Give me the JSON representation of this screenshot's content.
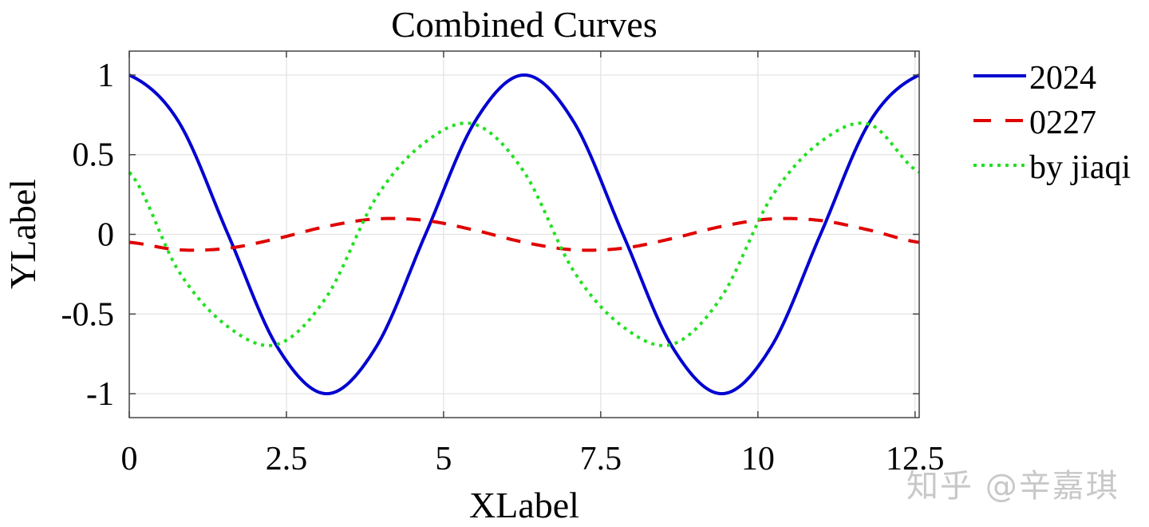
{
  "chart_data": {
    "type": "line",
    "title": "Combined Curves",
    "xlabel": "XLabel",
    "ylabel": "YLabel",
    "xlim": [
      0,
      12.566
    ],
    "ylim": [
      -1.15,
      1.15
    ],
    "grid": true,
    "legend_position": "outside-right-top",
    "xticks": [
      0,
      2.5,
      5,
      7.5,
      10,
      12.5
    ],
    "xtick_labels": [
      "0",
      "2.5",
      "5",
      "7.5",
      "10",
      "12.5"
    ],
    "yticks": [
      1,
      0.5,
      0,
      -0.5,
      -1
    ],
    "ytick_labels": [
      "1",
      "0.5",
      "0",
      "-0.5",
      "-1"
    ],
    "x": [
      0,
      0.785,
      1.571,
      2.356,
      3.142,
      3.927,
      4.712,
      5.498,
      6.283,
      7.069,
      7.854,
      8.639,
      9.425,
      10.21,
      10.996,
      11.781,
      12.566
    ],
    "series": [
      {
        "name": "2024",
        "color": "#0000d0",
        "style": "solid",
        "values": [
          1.0,
          0.707,
          0.0,
          -0.707,
          -1.0,
          -0.707,
          0.0,
          0.707,
          1.0,
          0.707,
          0.0,
          -0.707,
          -1.0,
          -0.707,
          0.0,
          0.707,
          1.0
        ]
      },
      {
        "name": "0227",
        "color": "#e00000",
        "style": "dashed",
        "values": [
          -0.05,
          -0.097,
          -0.087,
          -0.026,
          0.05,
          0.097,
          0.087,
          0.026,
          -0.05,
          -0.097,
          -0.087,
          -0.026,
          0.05,
          0.097,
          0.087,
          0.026,
          -0.05
        ]
      },
      {
        "name": "by jiaqi",
        "color": "#22e022",
        "style": "dotted",
        "values": [
          0.39,
          -0.23,
          -0.58,
          -0.69,
          -0.39,
          0.23,
          0.58,
          0.69,
          0.39,
          -0.23,
          -0.58,
          -0.69,
          -0.39,
          0.23,
          0.58,
          0.69,
          0.39
        ]
      }
    ]
  },
  "watermark": "知乎 @辛嘉琪"
}
